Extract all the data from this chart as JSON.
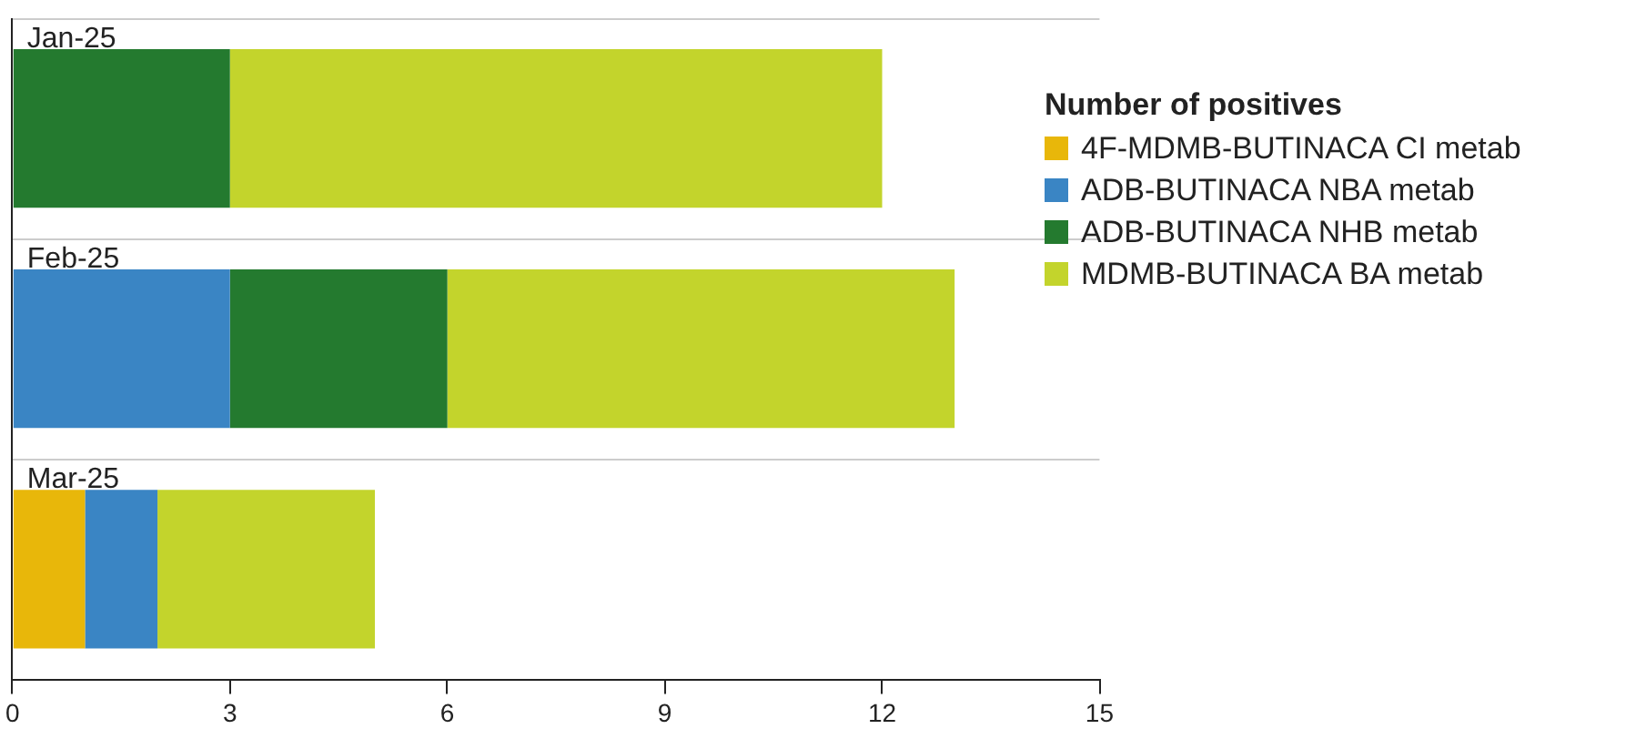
{
  "chart_data": {
    "type": "bar",
    "orientation": "horizontal",
    "stacked": true,
    "legend_title": "Number of positives",
    "legend": "top right",
    "grid": "y",
    "categories": [
      "Jan-25",
      "Feb-25",
      "Mar-25"
    ],
    "xlim": [
      0,
      15
    ],
    "xticks": [
      0,
      3,
      6,
      9,
      12,
      15
    ],
    "series": [
      {
        "name": "4F-MDMB-BUTINACA CI metab",
        "color": "#e8b70a",
        "values": [
          0,
          0,
          1
        ]
      },
      {
        "name": "ADB-BUTINACA NBA metab",
        "color": "#3a85c4",
        "values": [
          0,
          3,
          1
        ]
      },
      {
        "name": "ADB-BUTINACA NHB metab",
        "color": "#247a2f",
        "values": [
          3,
          3,
          0
        ]
      },
      {
        "name": "MDMB-BUTINACA BA metab",
        "color": "#c3d42c",
        "values": [
          9,
          7,
          3
        ]
      }
    ]
  }
}
